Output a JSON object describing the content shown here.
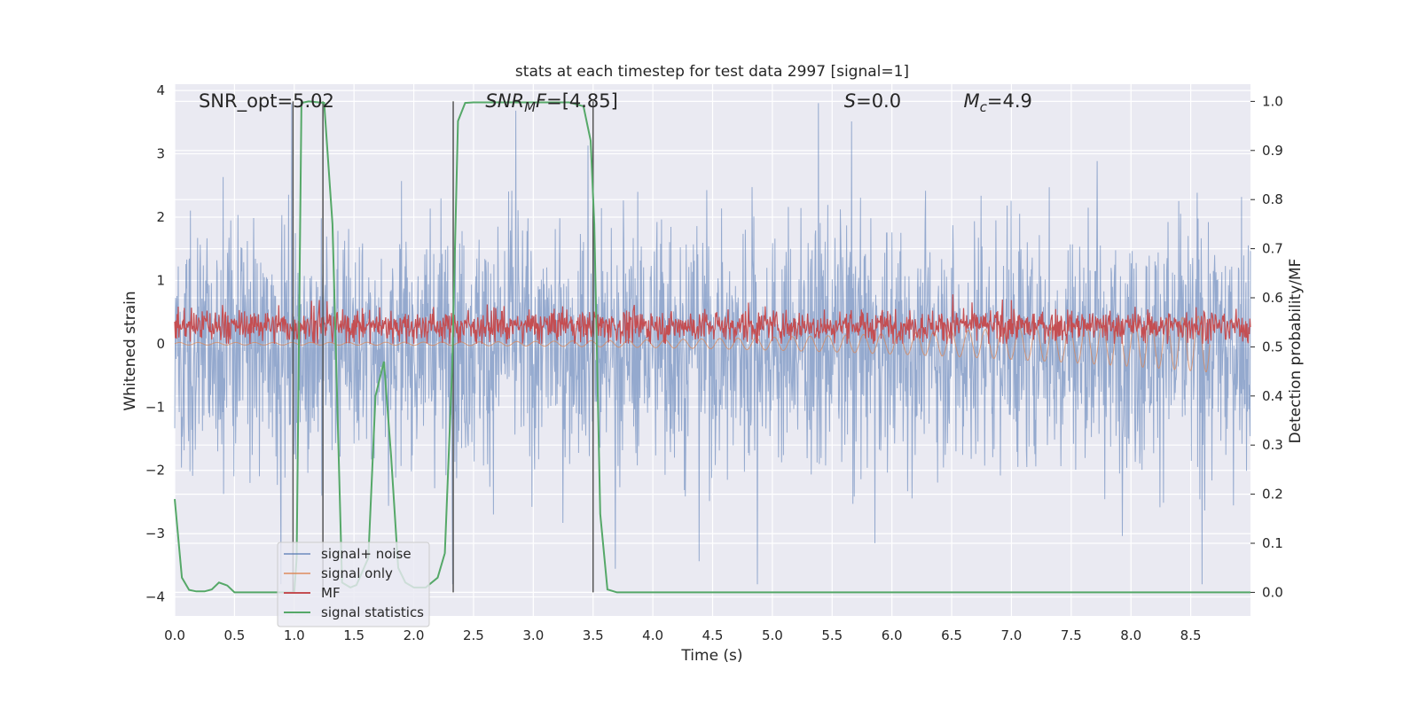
{
  "chart_data": {
    "type": "line",
    "title": "stats at each timestep for test data 2997 [signal=1]",
    "xlabel": "Time (s)",
    "ylabel_left": "Whitened strain",
    "ylabel_right": "Detection probability/MF",
    "xlim": [
      0.0,
      9.0
    ],
    "ylim_left": [
      -4.3,
      4.1
    ],
    "ylim_right": [
      -0.048,
      1.035
    ],
    "x_ticks": [
      "0.0",
      "0.5",
      "1.0",
      "1.5",
      "2.0",
      "2.5",
      "3.0",
      "3.5",
      "4.0",
      "4.5",
      "5.0",
      "5.5",
      "6.0",
      "6.5",
      "7.0",
      "7.5",
      "8.0",
      "8.5"
    ],
    "y_ticks_left": [
      "4",
      "3",
      "2",
      "1",
      "0",
      "−1",
      "−2",
      "−3",
      "−4"
    ],
    "y_ticks_right": [
      "1.0",
      "0.9",
      "0.8",
      "0.7",
      "0.6",
      "0.5",
      "0.4",
      "0.3",
      "0.2",
      "0.1",
      "0.0"
    ],
    "grid": true,
    "legend_position": "lower-left",
    "colors": {
      "background": "#eaeaf2",
      "grid": "#ffffff",
      "signal_noise": "#4c72b0",
      "signal_only": "#dd8452",
      "mf": "#c44e52",
      "signal_statistics": "#55a868",
      "vline": "#555555"
    },
    "series": [
      {
        "name": "signal+ noise",
        "axis": "left",
        "approx_range": [
          -3.8,
          3.8
        ],
        "typical_envelope": [
          -1.7,
          1.4
        ],
        "x_range": [
          0.0,
          9.0
        ]
      },
      {
        "name": "signal only",
        "axis": "left",
        "x_range": [
          0.0,
          8.66
        ],
        "envelope_end": [
          -0.45,
          0.45
        ]
      },
      {
        "name": "MF",
        "axis": "left",
        "typical_range": [
          0.0,
          0.6
        ],
        "max": 0.85,
        "x_range": [
          0.0,
          9.0
        ]
      },
      {
        "name": "signal statistics",
        "axis": "right",
        "x": [
          0.0,
          0.06,
          0.12,
          0.18,
          0.25,
          0.31,
          0.37,
          0.44,
          0.5,
          1.0,
          1.02,
          1.06,
          1.12,
          1.25,
          1.32,
          1.4,
          1.47,
          1.52,
          1.62,
          1.68,
          1.75,
          1.81,
          1.87,
          1.93,
          2.0,
          2.1,
          2.2,
          2.26,
          2.32,
          2.37,
          2.43,
          2.5,
          3.3,
          3.42,
          3.48,
          3.51,
          3.56,
          3.62,
          3.7,
          9.0
        ],
        "y": [
          0.19,
          0.03,
          0.005,
          0.002,
          0.002,
          0.006,
          0.02,
          0.014,
          0.0,
          0.0,
          0.07,
          0.997,
          1.0,
          0.997,
          0.75,
          0.02,
          0.01,
          0.015,
          0.07,
          0.4,
          0.47,
          0.28,
          0.05,
          0.02,
          0.01,
          0.01,
          0.03,
          0.08,
          0.45,
          0.96,
          0.997,
          0.998,
          0.998,
          0.99,
          0.92,
          0.75,
          0.16,
          0.006,
          0.0,
          0.0
        ]
      }
    ],
    "vlines_x": [
      0.99,
      1.24,
      2.33,
      3.5
    ],
    "annotations": [
      {
        "text": "SNR_opt=5.02",
        "x": 0.2
      },
      {
        "text": "SNR_MF=[4.85]",
        "x": 2.6
      },
      {
        "text": "S=0.0",
        "x": 5.6
      },
      {
        "text": "M_c=4.9",
        "x": 6.6
      }
    ]
  }
}
